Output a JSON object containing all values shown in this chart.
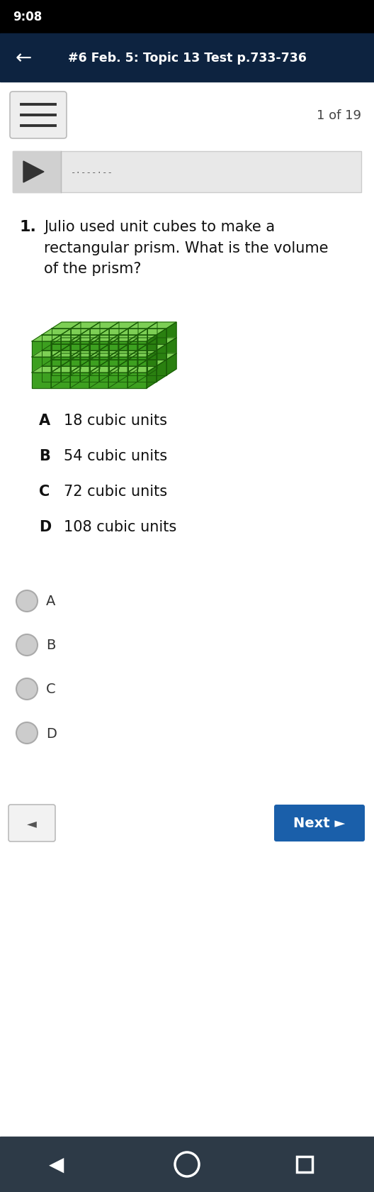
{
  "status_bar_bg": "#000000",
  "status_bar_text": "9:08",
  "nav_bar_bg": "#0d2340",
  "nav_bar_title": "#6 Feb. 5: Topic 13 Test p.733-736",
  "page_bg": "#ffffff",
  "header_text": "1 of 19",
  "question_number": "1.",
  "question_text": "Julio used unit cubes to make a\nrectangular prism. What is the volume\nof the prism?",
  "answer_choices": [
    {
      "letter": "A",
      "text": "18 cubic units"
    },
    {
      "letter": "B",
      "text": "54 cubic units"
    },
    {
      "letter": "C",
      "text": "72 cubic units"
    },
    {
      "letter": "D",
      "text": "108 cubic units"
    }
  ],
  "radio_labels": [
    "A",
    "B",
    "C",
    "D"
  ],
  "next_button_bg": "#1a5faa",
  "next_button_text": "Next ►",
  "back_button_text": "◄",
  "bottom_nav_bg": "#2d3a47",
  "audio_bar_bg": "#e8e8e8",
  "menu_bar_bg": "#eeeeee",
  "menu_icon_color": "#333333",
  "figsize": [
    5.28,
    16.81
  ],
  "dpi": 100,
  "cube_front": "#3da020",
  "cube_top": "#7dcf55",
  "cube_right": "#2a8010",
  "cube_grid": "#1a5c08"
}
